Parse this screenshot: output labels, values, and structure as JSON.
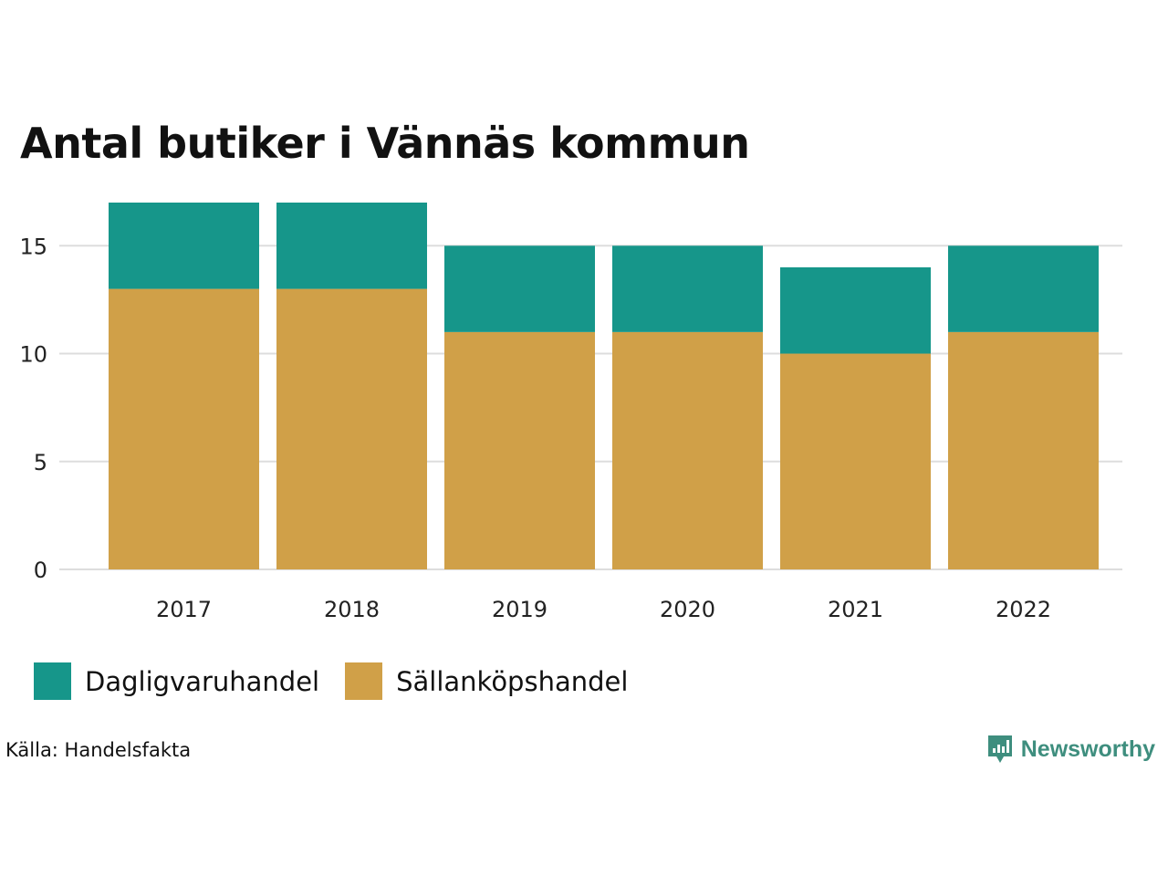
{
  "title": "Antal butiker i Vännäs kommun",
  "source": "Källa: Handelsfakta",
  "brand": {
    "name": "Newsworthy",
    "logo_icon": "newsworthy-logo-icon",
    "color": "#3e8e7e"
  },
  "colors": {
    "dagligvaruhandel": "#16968a",
    "sallankopshandel": "#d0a048",
    "grid": "#dddddd"
  },
  "chart_data": {
    "type": "bar",
    "stacked": true,
    "title": "Antal butiker i Vännäs kommun",
    "categories": [
      "2017",
      "2018",
      "2019",
      "2020",
      "2021",
      "2022"
    ],
    "series": [
      {
        "name": "Sällanköpshandel",
        "values": [
          13,
          13,
          11,
          11,
          10,
          11
        ]
      },
      {
        "name": "Dagligvaruhandel",
        "values": [
          4,
          4,
          4,
          4,
          4,
          4
        ]
      }
    ],
    "yticks": [
      0,
      5,
      10,
      15
    ],
    "ylim": [
      0,
      17
    ],
    "xlabel": "",
    "ylabel": "",
    "legend": [
      "Dagligvaruhandel",
      "Sällanköpshandel"
    ],
    "legend_position": "bottom-left",
    "grid": true
  }
}
